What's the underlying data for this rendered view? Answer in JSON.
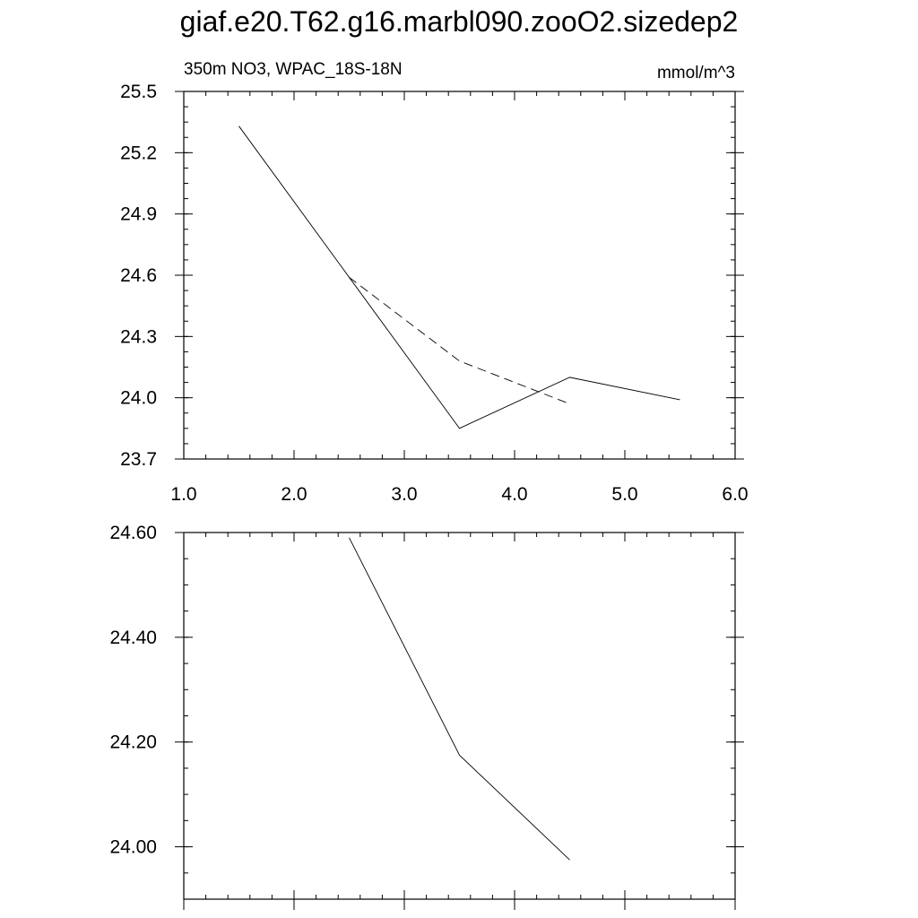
{
  "page_title": "giaf.e20.T62.g16.marbl090.zooO2.sizedep2",
  "chart_data": [
    {
      "type": "line",
      "title": "",
      "left_label": "350m NO3, WPAC_18S-18N",
      "right_label": "mmol/m^3",
      "xlabel": "",
      "ylabel": "",
      "xlim": [
        1.0,
        6.0
      ],
      "ylim": [
        23.7,
        25.5
      ],
      "xticks": [
        1.0,
        2.0,
        3.0,
        4.0,
        5.0,
        6.0
      ],
      "xtick_labels": [
        "1.0",
        "2.0",
        "3.0",
        "4.0",
        "5.0",
        "6.0"
      ],
      "yticks": [
        23.7,
        24.0,
        24.3,
        24.6,
        24.9,
        25.2,
        25.5
      ],
      "ytick_labels": [
        "23.7",
        "24.0",
        "24.3",
        "24.6",
        "24.9",
        "25.2",
        "25.5"
      ],
      "grid": false,
      "series": [
        {
          "style": "solid",
          "color": "#000000",
          "x": [
            1.5,
            2.5,
            3.5,
            4.5,
            5.5
          ],
          "y": [
            25.33,
            24.59,
            23.85,
            24.1,
            23.99
          ]
        },
        {
          "style": "dashed",
          "color": "#000000",
          "x": [
            2.5,
            3.5,
            4.5
          ],
          "y": [
            24.59,
            24.18,
            23.97
          ]
        }
      ]
    },
    {
      "type": "line",
      "title": "",
      "xlabel": "",
      "ylabel": "",
      "xlim": [
        1.0,
        6.0
      ],
      "ylim": [
        23.9,
        24.6
      ],
      "yticks": [
        24.0,
        24.2,
        24.4,
        24.6
      ],
      "ytick_labels": [
        "24.00",
        "24.20",
        "24.40",
        "24.60"
      ],
      "grid": false,
      "series": [
        {
          "style": "solid",
          "color": "#000000",
          "x": [
            2.5,
            3.5,
            4.5
          ],
          "y": [
            24.59,
            24.175,
            23.975
          ]
        }
      ]
    }
  ]
}
